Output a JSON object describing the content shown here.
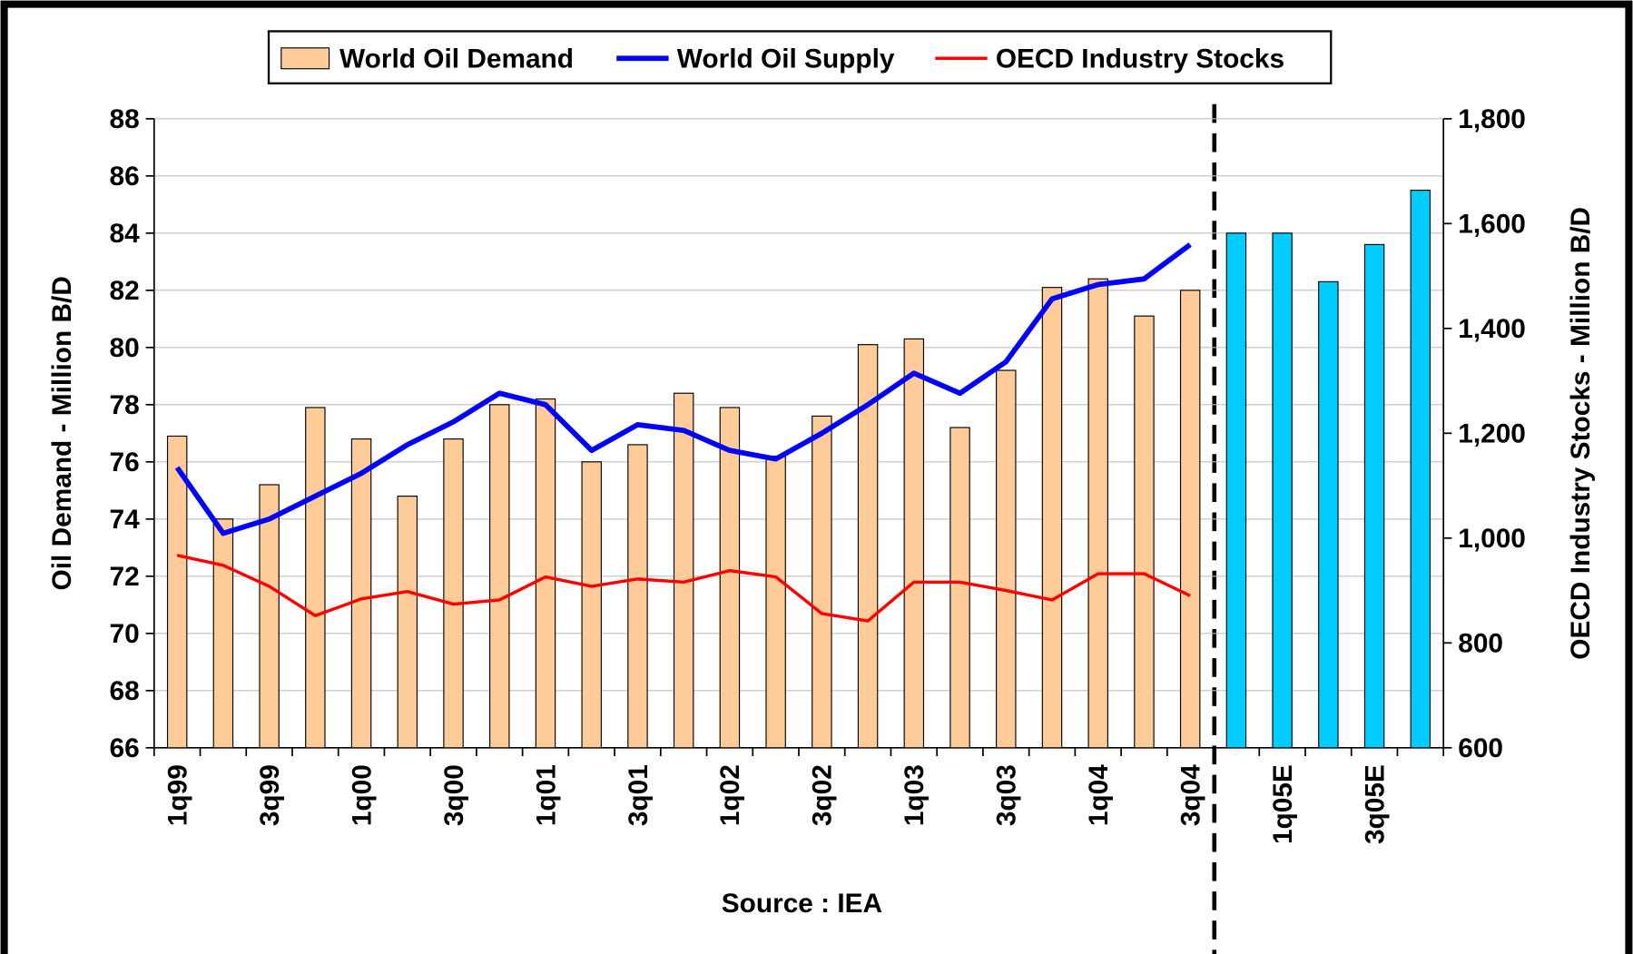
{
  "chart_data": {
    "type": "bar",
    "note": "Source : IEA",
    "ylabel": "Oil Demand - Million B/D",
    "y2label": "OECD Industry Stocks - Million B/D",
    "categories": [
      "1q99",
      null,
      "3q99",
      null,
      "1q00",
      null,
      "3q00",
      null,
      "1q01",
      null,
      "3q01",
      null,
      "1q02",
      null,
      "3q02",
      null,
      "1q03",
      null,
      "3q03",
      null,
      "1q04",
      null,
      "3q04",
      null,
      "1q05E",
      null,
      "3q05E",
      null
    ],
    "ylim": [
      66,
      88
    ],
    "yticks": [
      66,
      68,
      70,
      72,
      74,
      76,
      78,
      80,
      82,
      84,
      86,
      88
    ],
    "y2lim": [
      600,
      1800
    ],
    "y2ticks": [
      600,
      800,
      {
        "value": 1000,
        "label": "1,000"
      },
      {
        "value": 1200,
        "label": "1,200"
      },
      {
        "value": 1400,
        "label": "1,400"
      },
      {
        "value": 1600,
        "label": "1,600"
      },
      {
        "value": 1800,
        "label": "1,800"
      }
    ],
    "grid": true,
    "series": [
      {
        "name": "World Oil Demand",
        "type": "bar",
        "color": "#ffcc99",
        "colors": [
          "#ffcc99",
          "#ffcc99",
          "#ffcc99",
          "#ffcc99",
          "#ffcc99",
          "#ffcc99",
          "#ffcc99",
          "#ffcc99",
          "#ffcc99",
          "#ffcc99",
          "#ffcc99",
          "#ffcc99",
          "#ffcc99",
          "#ffcc99",
          "#ffcc99",
          "#ffcc99",
          "#ffcc99",
          "#ffcc99",
          "#ffcc99",
          "#ffcc99",
          "#ffcc99",
          "#ffcc99",
          "#ffcc99",
          "#00ccff",
          "#00ccff",
          "#00ccff",
          "#00ccff",
          "#00ccff"
        ],
        "values": [
          76.9,
          74.0,
          75.2,
          77.9,
          76.8,
          74.8,
          76.8,
          78.0,
          78.2,
          76.0,
          76.6,
          78.4,
          77.9,
          76.2,
          77.6,
          80.1,
          80.3,
          77.2,
          79.2,
          82.1,
          82.4,
          81.1,
          82.0,
          84.0,
          84.0,
          82.3,
          83.6,
          85.5
        ]
      },
      {
        "name": "World Oil Supply",
        "type": "line",
        "color": "#0000ff",
        "values": [
          75.8,
          73.5,
          74.0,
          74.8,
          75.6,
          76.6,
          77.4,
          78.4,
          78.0,
          76.4,
          77.3,
          77.1,
          76.4,
          76.1,
          77.0,
          78.0,
          79.1,
          78.4,
          79.5,
          81.7,
          82.2,
          82.4,
          83.6,
          null,
          null,
          null,
          null,
          null
        ]
      },
      {
        "name": "OECD Industry Stocks",
        "type": "line",
        "color": "#ff0000",
        "axis": "y2",
        "values": [
          967,
          948,
          908,
          852,
          884,
          898,
          874,
          882,
          926,
          908,
          922,
          916,
          938,
          926,
          856,
          842,
          916,
          916,
          900,
          882,
          932,
          932,
          890,
          null,
          null,
          null,
          null,
          null
        ]
      }
    ]
  }
}
